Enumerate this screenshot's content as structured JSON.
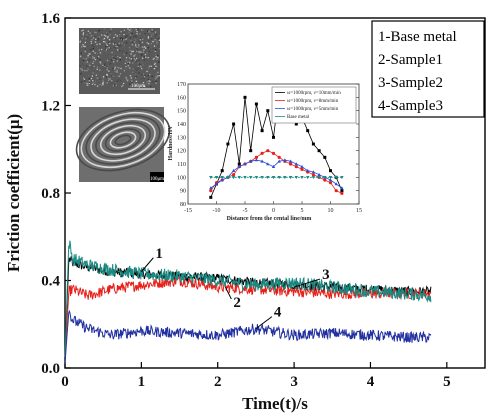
{
  "chart_data": {
    "type": "line",
    "xlabel": "Time(t)/s",
    "ylabel": "Friction coefficient(μ)",
    "xlim": [
      0,
      5.5
    ],
    "ylim": [
      0,
      1.6
    ],
    "xticks": [
      "0",
      "1",
      "2",
      "3",
      "4",
      "5"
    ],
    "yticks": [
      "0.0",
      "0.4",
      "0.8",
      "1.2",
      "1.6"
    ],
    "legend_position": "top-right",
    "legend": [
      "1-Base metal",
      "2-Sample1",
      "3-Sample2",
      "4-Sample3"
    ],
    "series": [
      {
        "name": "1-Base metal",
        "color": "#000000",
        "x": [
          0,
          0.05,
          0.1,
          0.3,
          0.6,
          1.0,
          1.5,
          2.0,
          2.5,
          3.0,
          3.5,
          4.0,
          4.5,
          4.8
        ],
        "y": [
          0.05,
          0.5,
          0.48,
          0.46,
          0.44,
          0.43,
          0.42,
          0.41,
          0.39,
          0.38,
          0.37,
          0.36,
          0.35,
          0.35
        ]
      },
      {
        "name": "2-Sample1",
        "color": "#e8201a",
        "x": [
          0,
          0.05,
          0.1,
          0.3,
          0.6,
          1.0,
          1.5,
          2.0,
          2.5,
          3.0,
          3.5,
          4.0,
          4.5,
          4.8
        ],
        "y": [
          0.05,
          0.35,
          0.36,
          0.33,
          0.36,
          0.38,
          0.4,
          0.37,
          0.36,
          0.35,
          0.34,
          0.34,
          0.34,
          0.34
        ]
      },
      {
        "name": "3-Sample2",
        "color": "#1a8a82",
        "x": [
          0,
          0.05,
          0.1,
          0.3,
          0.6,
          1.0,
          1.5,
          2.0,
          2.5,
          3.0,
          3.5,
          4.0,
          4.5,
          4.8
        ],
        "y": [
          0.05,
          0.58,
          0.5,
          0.47,
          0.45,
          0.43,
          0.42,
          0.4,
          0.38,
          0.39,
          0.37,
          0.35,
          0.34,
          0.33
        ]
      },
      {
        "name": "4-Sample3",
        "color": "#2230a0",
        "x": [
          0,
          0.05,
          0.1,
          0.3,
          0.6,
          1.0,
          1.5,
          2.0,
          2.5,
          3.0,
          3.5,
          4.0,
          4.5,
          4.8
        ],
        "y": [
          0.02,
          0.26,
          0.22,
          0.18,
          0.15,
          0.17,
          0.16,
          0.15,
          0.18,
          0.15,
          0.16,
          0.15,
          0.14,
          0.14
        ]
      }
    ],
    "annotations": [
      {
        "text": "1",
        "x": 1.0,
        "y": 0.44
      },
      {
        "text": "2",
        "x": 2.1,
        "y": 0.37
      },
      {
        "text": "3",
        "x": 3.0,
        "y": 0.37
      },
      {
        "text": "4",
        "x": 2.5,
        "y": 0.18
      }
    ],
    "inset": {
      "type": "line",
      "xlabel": "Distance from the cental line/mm",
      "ylabel": "Hardness/HV",
      "xlim": [
        -15,
        15
      ],
      "ylim": [
        80,
        170
      ],
      "xticks": [
        "-15",
        "-10",
        "-5",
        "0",
        "5",
        "10",
        "15"
      ],
      "yticks": [
        "80",
        "90",
        "100",
        "110",
        "120",
        "130",
        "140",
        "150",
        "160",
        "170"
      ],
      "legend": [
        "ω=1000rpm, ν=10mm/min",
        "ω=1000rpm, ν=8mm/min",
        "ω=1000rpm, ν=5mm/min",
        "Base metal"
      ],
      "series": [
        {
          "name": "ω=1000rpm, ν=10mm/min",
          "color": "#000000",
          "x": [
            -11,
            -10,
            -9,
            -8,
            -7,
            -6,
            -5,
            -4,
            -3,
            -2,
            -1,
            0,
            1,
            2,
            3,
            4,
            5,
            6,
            7,
            8,
            9,
            10,
            11,
            12
          ],
          "y": [
            85,
            95,
            105,
            125,
            140,
            110,
            160,
            120,
            155,
            135,
            150,
            130,
            165,
            155,
            150,
            140,
            145,
            135,
            125,
            120,
            115,
            105,
            100,
            90
          ]
        },
        {
          "name": "ω=1000rpm, ν=8mm/min",
          "color": "#e8201a",
          "x": [
            -11,
            -10,
            -9,
            -8,
            -7,
            -6,
            -5,
            -4,
            -3,
            -2,
            -1,
            0,
            1,
            2,
            3,
            4,
            5,
            6,
            7,
            8,
            9,
            10,
            11,
            12
          ],
          "y": [
            90,
            96,
            98,
            100,
            102,
            108,
            110,
            112,
            115,
            118,
            120,
            118,
            115,
            112,
            110,
            108,
            106,
            104,
            102,
            100,
            98,
            96,
            90,
            88
          ]
        },
        {
          "name": "ω=1000rpm, ν=5mm/min",
          "color": "#2b4fd8",
          "x": [
            -11,
            -10,
            -9,
            -8,
            -7,
            -6,
            -5,
            -4,
            -3,
            -2,
            -1,
            0,
            1,
            2,
            3,
            4,
            5,
            6,
            7,
            8,
            9,
            10,
            11,
            12
          ],
          "y": [
            92,
            95,
            98,
            100,
            105,
            108,
            110,
            112,
            113,
            112,
            110,
            108,
            112,
            113,
            112,
            110,
            108,
            105,
            104,
            102,
            100,
            98,
            95,
            92
          ]
        },
        {
          "name": "Base metal",
          "color": "#1a8a82",
          "x": [
            -11,
            -10,
            -9,
            -8,
            -7,
            -6,
            -5,
            -4,
            -3,
            -2,
            -1,
            0,
            1,
            2,
            3,
            4,
            5,
            6,
            7,
            8,
            9,
            10,
            11,
            12
          ],
          "y": [
            100,
            100,
            100,
            100,
            100,
            100,
            100,
            100,
            100,
            100,
            100,
            100,
            100,
            100,
            100,
            100,
            100,
            100,
            100,
            100,
            100,
            100,
            100,
            100
          ]
        }
      ]
    },
    "micrographs": [
      {
        "scale_label": "100μm"
      },
      {
        "scale_label": "100μm"
      }
    ]
  }
}
